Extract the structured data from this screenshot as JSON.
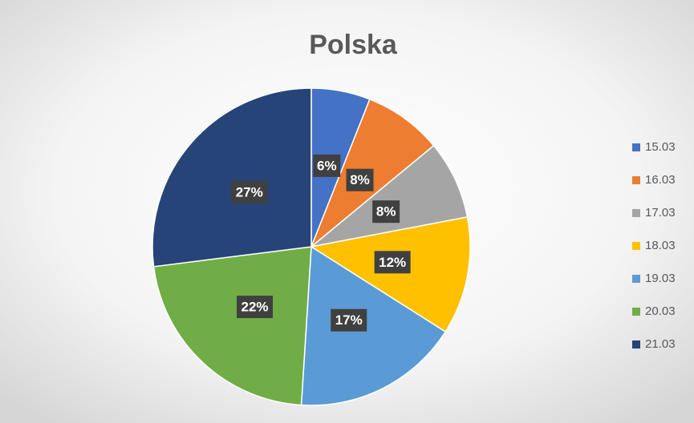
{
  "chart_data": {
    "type": "pie",
    "title": "Polska",
    "categories": [
      "15.03",
      "16.03",
      "17.03",
      "18.03",
      "19.03",
      "20.03",
      "21.03"
    ],
    "values": [
      6,
      8,
      8,
      12,
      17,
      22,
      27
    ],
    "value_labels": [
      "6%",
      "8%",
      "8%",
      "12%",
      "17%",
      "22%",
      "27%"
    ],
    "colors": [
      "#4472c4",
      "#ed7d31",
      "#a5a5a5",
      "#ffc000",
      "#5b9bd5",
      "#70ad47",
      "#264478"
    ],
    "legend": "right"
  }
}
